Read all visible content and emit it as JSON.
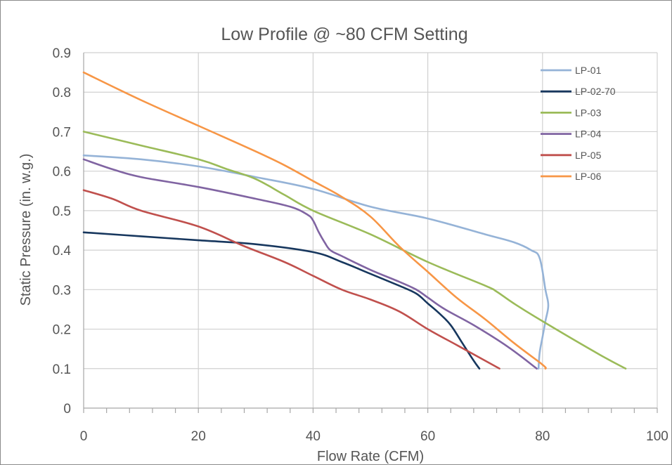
{
  "chart_data": {
    "type": "line",
    "title": "Low Profile @ ~80 CFM Setting",
    "xlabel": "Flow Rate (CFM)",
    "ylabel": "Static Pressure (in. w.g.)",
    "xlim": [
      0,
      100
    ],
    "ylim": [
      0,
      0.9
    ],
    "xticks": [
      0,
      20,
      40,
      60,
      80,
      100
    ],
    "yticks": [
      0,
      0.1,
      0.2,
      0.3,
      0.4,
      0.5,
      0.6,
      0.7,
      0.8,
      0.9
    ],
    "xtick_labels": [
      "0",
      "20",
      "40",
      "60",
      "80",
      "100"
    ],
    "ytick_labels": [
      "0",
      "0.1",
      "0.2",
      "0.3",
      "0.4",
      "0.5",
      "0.6",
      "0.7",
      "0.8",
      "0.9"
    ],
    "grid": true,
    "legend_position": "top-right",
    "series": [
      {
        "name": "LP-01",
        "color": "#95b3d7",
        "points": [
          [
            0,
            0.64
          ],
          [
            10,
            0.63
          ],
          [
            20,
            0.612
          ],
          [
            30,
            0.585
          ],
          [
            40,
            0.555
          ],
          [
            50,
            0.51
          ],
          [
            60,
            0.48
          ],
          [
            70,
            0.44
          ],
          [
            75,
            0.42
          ],
          [
            78,
            0.4
          ],
          [
            79.5,
            0.38
          ],
          [
            80.5,
            0.3
          ],
          [
            81,
            0.26
          ],
          [
            80.5,
            0.22
          ],
          [
            80,
            0.18
          ],
          [
            79.5,
            0.14
          ],
          [
            79.3,
            0.1
          ]
        ]
      },
      {
        "name": "LP-02-70",
        "color": "#17375e",
        "points": [
          [
            0,
            0.445
          ],
          [
            10,
            0.435
          ],
          [
            20,
            0.425
          ],
          [
            30,
            0.415
          ],
          [
            40,
            0.395
          ],
          [
            45,
            0.37
          ],
          [
            50,
            0.34
          ],
          [
            55,
            0.31
          ],
          [
            58,
            0.29
          ],
          [
            60,
            0.265
          ],
          [
            62,
            0.24
          ],
          [
            64,
            0.21
          ],
          [
            66,
            0.165
          ],
          [
            68,
            0.12
          ],
          [
            69,
            0.1
          ]
        ]
      },
      {
        "name": "LP-03",
        "color": "#9bbb59",
        "points": [
          [
            0,
            0.7
          ],
          [
            10,
            0.665
          ],
          [
            20,
            0.63
          ],
          [
            25,
            0.605
          ],
          [
            30,
            0.58
          ],
          [
            35,
            0.54
          ],
          [
            40,
            0.5
          ],
          [
            50,
            0.44
          ],
          [
            60,
            0.37
          ],
          [
            70,
            0.31
          ],
          [
            72,
            0.295
          ],
          [
            75,
            0.265
          ],
          [
            80,
            0.22
          ],
          [
            90,
            0.135
          ],
          [
            94.5,
            0.1
          ]
        ]
      },
      {
        "name": "LP-04",
        "color": "#8064a2",
        "points": [
          [
            0,
            0.63
          ],
          [
            5,
            0.605
          ],
          [
            10,
            0.585
          ],
          [
            20,
            0.56
          ],
          [
            30,
            0.53
          ],
          [
            36,
            0.51
          ],
          [
            39,
            0.49
          ],
          [
            40,
            0.475
          ],
          [
            41,
            0.445
          ],
          [
            42,
            0.42
          ],
          [
            43,
            0.4
          ],
          [
            45,
            0.385
          ],
          [
            50,
            0.35
          ],
          [
            55,
            0.32
          ],
          [
            58,
            0.3
          ],
          [
            60,
            0.28
          ],
          [
            63,
            0.25
          ],
          [
            68,
            0.21
          ],
          [
            74,
            0.155
          ],
          [
            79,
            0.1
          ]
        ]
      },
      {
        "name": "LP-05",
        "color": "#c0504d",
        "points": [
          [
            0,
            0.552
          ],
          [
            5,
            0.53
          ],
          [
            10,
            0.5
          ],
          [
            20,
            0.46
          ],
          [
            28,
            0.41
          ],
          [
            35,
            0.37
          ],
          [
            40,
            0.335
          ],
          [
            45,
            0.3
          ],
          [
            50,
            0.275
          ],
          [
            55,
            0.245
          ],
          [
            60,
            0.2
          ],
          [
            65,
            0.16
          ],
          [
            70,
            0.12
          ],
          [
            72.5,
            0.1
          ]
        ]
      },
      {
        "name": "LP-06",
        "color": "#f79646",
        "points": [
          [
            0,
            0.85
          ],
          [
            10,
            0.78
          ],
          [
            20,
            0.715
          ],
          [
            30,
            0.65
          ],
          [
            35,
            0.615
          ],
          [
            40,
            0.575
          ],
          [
            45,
            0.535
          ],
          [
            50,
            0.485
          ],
          [
            55,
            0.41
          ],
          [
            60,
            0.345
          ],
          [
            65,
            0.28
          ],
          [
            70,
            0.225
          ],
          [
            75,
            0.165
          ],
          [
            80,
            0.11
          ],
          [
            80.5,
            0.1
          ]
        ]
      }
    ]
  }
}
